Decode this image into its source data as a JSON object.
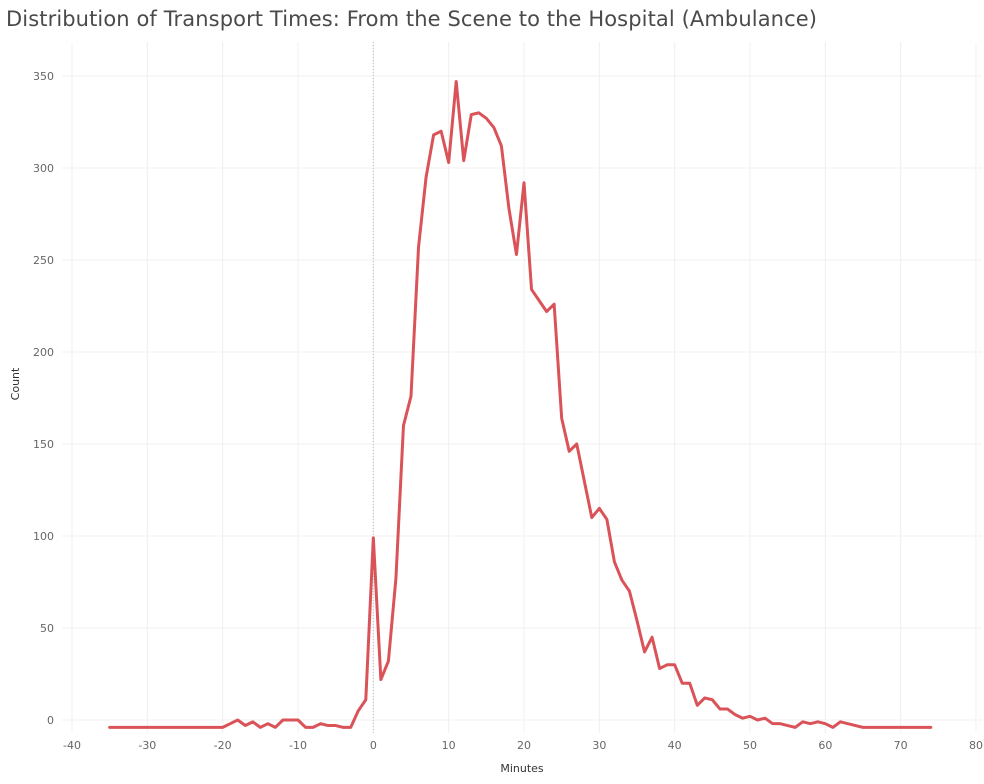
{
  "chart_data": {
    "type": "line",
    "title": "Distribution of Transport Times: From the Scene to the Hospital (Ambulance)",
    "xlabel": "Minutes",
    "ylabel": "Count",
    "xlim": [
      -40,
      80
    ],
    "ylim": [
      -4,
      350
    ],
    "x_ticks": [
      -40,
      -30,
      -20,
      -10,
      0,
      10,
      20,
      30,
      40,
      50,
      60,
      70,
      80
    ],
    "y_ticks": [
      0,
      50,
      100,
      150,
      200,
      250,
      300,
      350
    ],
    "grid": true,
    "reference_line_x": 0,
    "line_color": "#d95358",
    "series": [
      {
        "x": [
          -35,
          -34,
          -33,
          -32,
          -31,
          -30,
          -29,
          -28,
          -27,
          -26,
          -25,
          -24,
          -23,
          -22,
          -21,
          -20,
          -19,
          -18,
          -17,
          -16,
          -15,
          -14,
          -13,
          -12,
          -11,
          -10,
          -9,
          -8,
          -7,
          -6,
          -5,
          -4,
          -3,
          -2,
          -1,
          0,
          1,
          2,
          3,
          4,
          5,
          6,
          7,
          8,
          9,
          10,
          11,
          12,
          13,
          14,
          15,
          16,
          17,
          18,
          19,
          20,
          21,
          22,
          23,
          24,
          25,
          26,
          27,
          28,
          29,
          30,
          31,
          32,
          33,
          34,
          35,
          36,
          37,
          38,
          39,
          40,
          41,
          42,
          43,
          44,
          45,
          46,
          47,
          48,
          49,
          50,
          51,
          52,
          53,
          54,
          55,
          56,
          57,
          58,
          59,
          60,
          61,
          62,
          63,
          64,
          65,
          66,
          67,
          68,
          69,
          70,
          71,
          72,
          73,
          74
        ],
        "values": [
          -4,
          -4,
          -4,
          -4,
          -4,
          -4,
          -4,
          -4,
          -4,
          -4,
          -4,
          -4,
          -4,
          -4,
          -4,
          -4,
          -2,
          0,
          -3,
          -1,
          -4,
          -2,
          -4,
          0,
          0,
          0,
          -4,
          -4,
          -2,
          -3,
          -3,
          -4,
          -4,
          5,
          11,
          99,
          22,
          32,
          77,
          160,
          176,
          257,
          295,
          318,
          320,
          303,
          347,
          304,
          329,
          330,
          327,
          322,
          312,
          278,
          253,
          292,
          234,
          228,
          222,
          226,
          164,
          146,
          150,
          130,
          110,
          115,
          109,
          86,
          76,
          70,
          54,
          37,
          45,
          28,
          30,
          30,
          20,
          20,
          8,
          12,
          11,
          6,
          6,
          3,
          1,
          2,
          0,
          1,
          -2,
          -2,
          -3,
          -4,
          -1,
          -2,
          -1,
          -2,
          -4,
          -1,
          -2,
          -3,
          -4,
          -4,
          -4,
          -4,
          -4,
          -4,
          -4,
          -4,
          -4,
          -4
        ]
      }
    ]
  }
}
